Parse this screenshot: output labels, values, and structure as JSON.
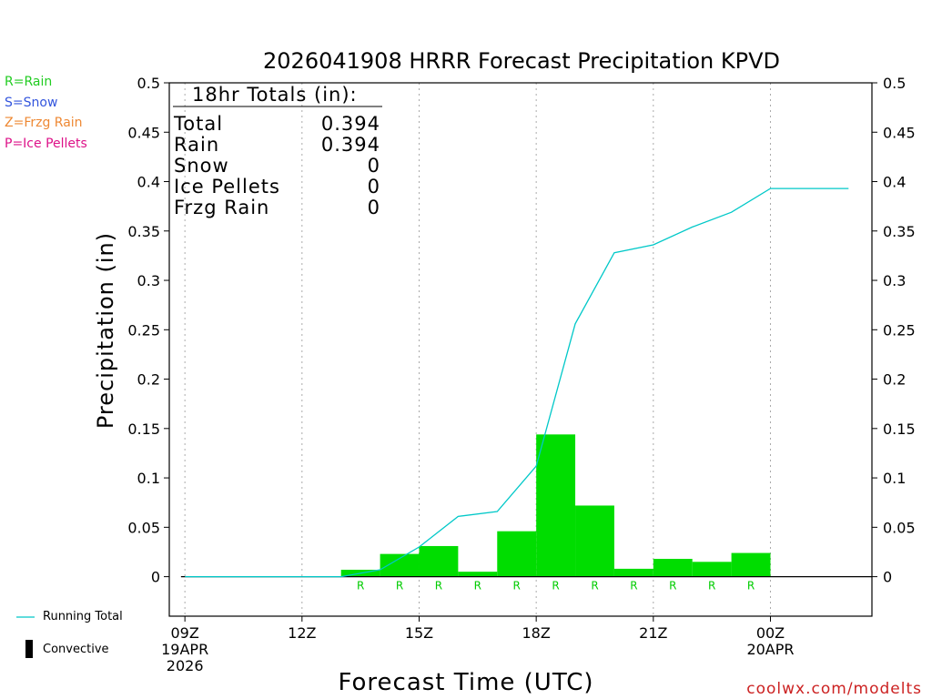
{
  "chart_data": {
    "type": "bar",
    "title": "2026041908 HRRR Forecast Precipitation KPVD",
    "xlabel": "Forecast Time (UTC)",
    "ylabel": "Precipitation (in)",
    "ylim": [
      -0.04,
      0.5
    ],
    "xlim": [
      8.6,
      26.6
    ],
    "yticks": [
      0,
      0.05,
      0.1,
      0.15,
      0.2,
      0.25,
      0.3,
      0.35,
      0.4,
      0.45,
      0.5
    ],
    "ytick_labels": [
      "0",
      "0.05",
      "0.1",
      "0.15",
      "0.2",
      "0.25",
      "0.3",
      "0.35",
      "0.4",
      "0.45",
      "0.5"
    ],
    "xticks": [
      {
        "x": 9,
        "lines": [
          "09Z",
          "19APR",
          "2026"
        ]
      },
      {
        "x": 12,
        "lines": [
          "12Z"
        ]
      },
      {
        "x": 15,
        "lines": [
          "15Z"
        ]
      },
      {
        "x": 18,
        "lines": [
          "18Z"
        ]
      },
      {
        "x": 21,
        "lines": [
          "21Z"
        ]
      },
      {
        "x": 24,
        "lines": [
          "00Z",
          "20APR"
        ]
      }
    ],
    "hourly_precip": {
      "name": "Hourly Precipitation",
      "color": "#00dd00",
      "x": [
        14,
        15,
        16,
        17,
        18,
        19,
        20,
        21,
        22,
        23,
        24
      ],
      "values": [
        0.007,
        0.023,
        0.031,
        0.005,
        0.046,
        0.144,
        0.072,
        0.008,
        0.018,
        0.015,
        0.024
      ]
    },
    "running_total": {
      "name": "Running Total",
      "color": "#00c8c8",
      "x": [
        9,
        10,
        11,
        12,
        13,
        14,
        15,
        16,
        17,
        18,
        19,
        20,
        21,
        22,
        23,
        24,
        26
      ],
      "values": [
        0,
        0,
        0,
        0,
        0,
        0.007,
        0.03,
        0.061,
        0.066,
        0.112,
        0.256,
        0.328,
        0.336,
        0.354,
        0.369,
        0.393,
        0.393
      ]
    },
    "ptype_markers": {
      "color": "#00cc00",
      "x": [
        14,
        15,
        16,
        17,
        18,
        19,
        20,
        21,
        22,
        23,
        24
      ],
      "labels": [
        "R",
        "R",
        "R",
        "R",
        "R",
        "R",
        "R",
        "R",
        "R",
        "R",
        "R"
      ]
    }
  },
  "totals_box": {
    "header": "18hr Totals (in):",
    "rows": [
      {
        "label": "Total",
        "value": "0.394"
      },
      {
        "label": "Rain",
        "value": "0.394"
      },
      {
        "label": "Snow",
        "value": "0"
      },
      {
        "label": "Ice Pellets",
        "value": "0"
      },
      {
        "label": "Frzg Rain",
        "value": "0"
      }
    ]
  },
  "ptype_legend": [
    {
      "text": "R=Rain",
      "color": "#22cc22"
    },
    {
      "text": "S=Snow",
      "color": "#3355dd"
    },
    {
      "text": "Z=Frzg Rain",
      "color": "#ee8833"
    },
    {
      "text": "P=Ice Pellets",
      "color": "#dd1188"
    }
  ],
  "series_legend": {
    "running_total_label": "Running Total",
    "convective_label": "Convective"
  },
  "credit": "coolwx.com/modelts"
}
